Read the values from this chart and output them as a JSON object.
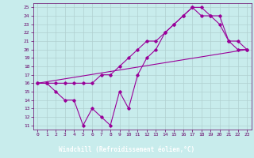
{
  "xlabel": "Windchill (Refroidissement éolien,°C)",
  "bg_color": "#c8ecec",
  "xlabel_bg": "#660066",
  "line_color": "#990099",
  "tick_color": "#660066",
  "grid_color": "#b0d0d0",
  "xlim": [
    -0.5,
    23.5
  ],
  "ylim": [
    10.5,
    25.5
  ],
  "yticks": [
    11,
    12,
    13,
    14,
    15,
    16,
    17,
    18,
    19,
    20,
    21,
    22,
    23,
    24,
    25
  ],
  "xticks": [
    0,
    1,
    2,
    3,
    4,
    5,
    6,
    7,
    8,
    9,
    10,
    11,
    12,
    13,
    14,
    15,
    16,
    17,
    18,
    19,
    20,
    21,
    22,
    23
  ],
  "series1_x": [
    0,
    1,
    2,
    3,
    4,
    5,
    6,
    7,
    8,
    9,
    10,
    11,
    12,
    13,
    14,
    15,
    16,
    17,
    18,
    19,
    20,
    21,
    22,
    23
  ],
  "series1_y": [
    16,
    16,
    15,
    14,
    14,
    11,
    13,
    12,
    11,
    15,
    13,
    17,
    19,
    20,
    22,
    23,
    24,
    25,
    25,
    24,
    24,
    21,
    20,
    20
  ],
  "series2_x": [
    0,
    1,
    2,
    3,
    4,
    5,
    6,
    7,
    8,
    9,
    10,
    11,
    12,
    13,
    14,
    15,
    16,
    17,
    18,
    19,
    20,
    21,
    22,
    23
  ],
  "series2_y": [
    16,
    16,
    16,
    16,
    16,
    16,
    16,
    17,
    17,
    18,
    19,
    20,
    21,
    21,
    22,
    23,
    24,
    25,
    24,
    24,
    23,
    21,
    21,
    20
  ],
  "series3_x": [
    0,
    23
  ],
  "series3_y": [
    16,
    20
  ]
}
